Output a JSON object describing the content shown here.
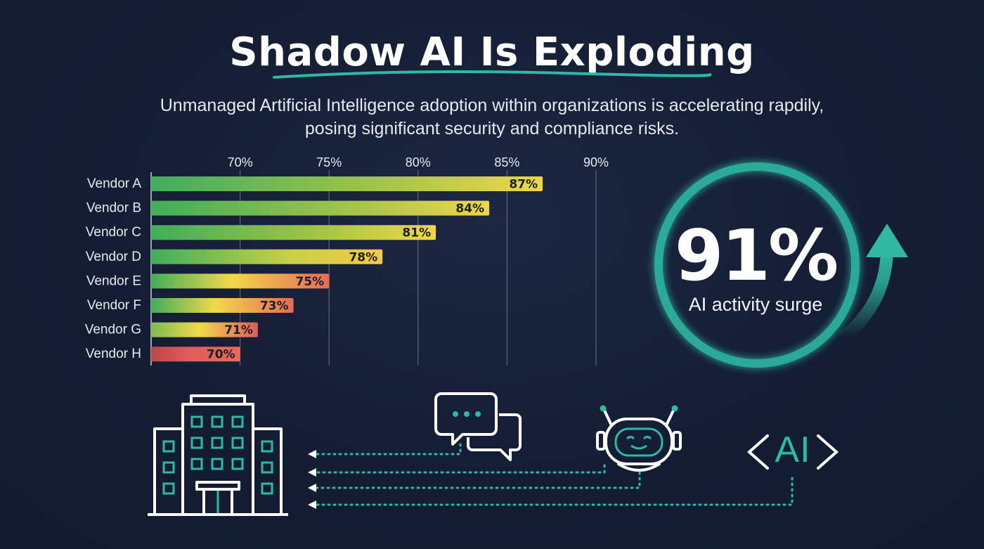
{
  "title": "Shadow AI Is Exploding",
  "subtitle": "Unmanaged Artificial Intelligence adoption within organizations is accelerating rapdily, posing significant security and compliance risks.",
  "chart_data": {
    "type": "bar",
    "orientation": "horizontal",
    "categories": [
      "Vendor A",
      "Vendor B",
      "Vendor C",
      "Vendor D",
      "Vendor E",
      "Vendor F",
      "Vendor G",
      "Vendor H"
    ],
    "values": [
      87,
      84,
      81,
      78,
      75,
      73,
      71,
      70
    ],
    "value_labels": [
      "87%",
      "84%",
      "81%",
      "78%",
      "75%",
      "73%",
      "71%",
      "70%"
    ],
    "ticks": [
      "70%",
      "75%",
      "80%",
      "85%",
      "90%"
    ],
    "tick_values": [
      70,
      75,
      80,
      85,
      90
    ],
    "xlim": [
      65,
      90
    ],
    "grid": true,
    "colors": {
      "high": "#e8d34f",
      "mid": "#f2d84a",
      "low": "#e05a5a",
      "green": "#3fae5a"
    }
  },
  "highlight": {
    "value": "91%",
    "caption": "AI activity surge",
    "ring_color": "#2fb9a3"
  },
  "icons": {
    "building": "building-icon",
    "chat": "chat-bubbles-icon",
    "robot": "robot-icon",
    "ai_tag": "<AI>",
    "ai_label": "AI"
  },
  "accent": "#2fb9a3"
}
